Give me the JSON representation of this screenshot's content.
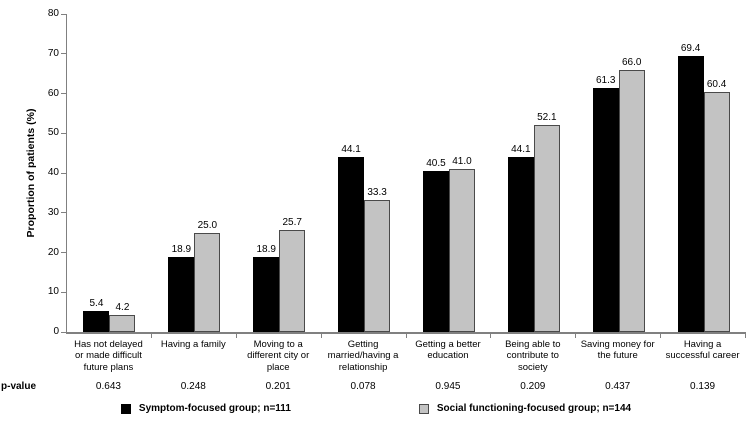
{
  "chart_data": {
    "type": "bar",
    "title": "",
    "xlabel": "",
    "ylabel": "Proportion of patients (%)",
    "ylim": [
      0,
      80
    ],
    "yticks": [
      0,
      10,
      20,
      30,
      40,
      50,
      60,
      70,
      80
    ],
    "grid": false,
    "legend_position": "bottom",
    "categories": [
      "Has not delayed or made difficult future plans",
      "Having a family",
      "Moving to a different city or place",
      "Getting married/having a relationship",
      "Getting a better education",
      "Being able to contribute to society",
      "Saving money for the future",
      "Having a successful career"
    ],
    "series": [
      {
        "name": "Symptom-focused group; n=111",
        "color": "#000000",
        "values": [
          5.4,
          18.9,
          18.9,
          44.1,
          40.5,
          44.1,
          61.3,
          69.4
        ]
      },
      {
        "name": "Social functioning-focused group; n=144",
        "color": "#c3c3c3",
        "values": [
          4.2,
          25.0,
          25.7,
          33.3,
          41.0,
          52.1,
          66.0,
          60.4
        ]
      }
    ],
    "pvalue_row_label": "p-value",
    "p_values": [
      "0.643",
      "0.248",
      "0.201",
      "0.078",
      "0.945",
      "0.209",
      "0.437",
      "0.139"
    ]
  }
}
